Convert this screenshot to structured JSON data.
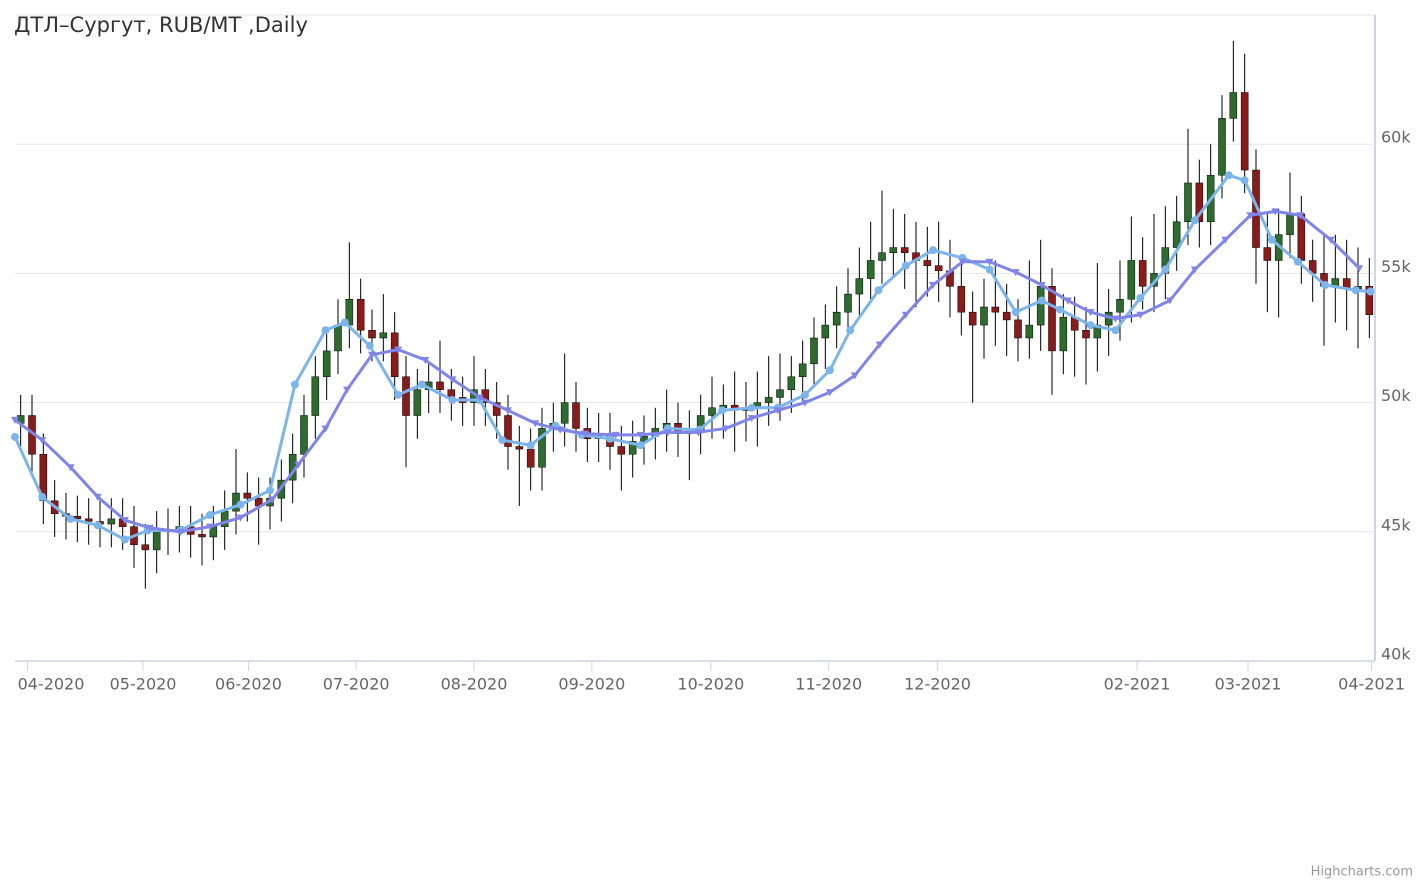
{
  "chart_data": {
    "type": "candlestick",
    "title": "ДТЛ–Сургут, RUB/MT ,Daily",
    "credits": "Highcharts.com",
    "up_color": "#2e6b2e",
    "down_color": "#8b1a1a",
    "wick_color": "#000000",
    "grid": true,
    "xlim": [
      -0.5,
      119.5
    ],
    "xticks": [
      {
        "value": 0.6,
        "label": "04-2020"
      },
      {
        "value": 10.8,
        "label": "05-2020"
      },
      {
        "value": 20.1,
        "label": "06-2020"
      },
      {
        "value": 29.6,
        "label": "07-2020"
      },
      {
        "value": 40,
        "label": "08-2020"
      },
      {
        "value": 50.4,
        "label": "09-2020"
      },
      {
        "value": 60.9,
        "label": "10-2020"
      },
      {
        "value": 71.3,
        "label": "11-2020"
      },
      {
        "value": 80.9,
        "label": "12-2020"
      },
      {
        "value": 98.5,
        "label": "02-2021"
      },
      {
        "value": 108.3,
        "label": "03-2021"
      },
      {
        "value": 119.2,
        "label": "04-2021"
      }
    ],
    "ylim": [
      40000,
      65000
    ],
    "yticks": [
      {
        "value": 40000,
        "label": "40k"
      },
      {
        "value": 45000,
        "label": "45k"
      },
      {
        "value": 50000,
        "label": "50k"
      },
      {
        "value": 55000,
        "label": "55k"
      },
      {
        "value": 60000,
        "label": "60k"
      }
    ],
    "open": [
      49200,
      49500,
      48000,
      46200,
      45700,
      45600,
      45500,
      45400,
      45300,
      45500,
      45200,
      44500,
      44300,
      45000,
      45100,
      45200,
      44900,
      44800,
      45200,
      45800,
      46500,
      46300,
      46000,
      46300,
      47000,
      48000,
      49500,
      51000,
      52000,
      53000,
      54000,
      52800,
      52500,
      52700,
      51000,
      49500,
      50500,
      50800,
      50500,
      50200,
      50000,
      50500,
      50000,
      49500,
      48300,
      48200,
      47500,
      49000,
      49200,
      50000,
      49000,
      48600,
      48800,
      48300,
      48000,
      48500,
      48700,
      49000,
      49200,
      48800,
      48900,
      49500,
      49800,
      49900,
      49700,
      49800,
      50000,
      50200,
      50500,
      51000,
      51500,
      52500,
      53000,
      53500,
      54200,
      54800,
      55500,
      55800,
      56000,
      55800,
      55500,
      55300,
      55100,
      54500,
      53500,
      53000,
      53700,
      53500,
      53200,
      52500,
      53000,
      54500,
      52000,
      53300,
      52800,
      52500,
      53000,
      53500,
      54000,
      55500,
      54500,
      55000,
      56000,
      57000,
      58500,
      57000,
      58800,
      61000,
      62000,
      59000,
      56000,
      55500,
      56500,
      57300,
      55500,
      55000,
      54500,
      54800,
      54400,
      54500
    ],
    "high": [
      50300,
      50300,
      48800,
      47000,
      46500,
      46400,
      46300,
      46200,
      46300,
      46300,
      46000,
      45300,
      45800,
      45900,
      46000,
      46000,
      45700,
      46000,
      46600,
      48200,
      47300,
      47100,
      47100,
      47800,
      48800,
      50300,
      51800,
      52800,
      54000,
      56200,
      54800,
      53600,
      54200,
      53500,
      51800,
      51300,
      51600,
      52400,
      51300,
      51000,
      51800,
      51300,
      50800,
      50300,
      49100,
      49000,
      49800,
      50000,
      51900,
      50800,
      49800,
      49600,
      49600,
      49100,
      49300,
      49500,
      49800,
      50500,
      50000,
      49700,
      50300,
      51000,
      50700,
      51200,
      50800,
      51200,
      51800,
      51900,
      51800,
      52400,
      53300,
      53800,
      54500,
      55200,
      56000,
      57000,
      58200,
      57500,
      57300,
      57000,
      56800,
      57000,
      56300,
      55500,
      54300,
      54800,
      55500,
      54600,
      54000,
      55500,
      56300,
      55200,
      54200,
      54100,
      53700,
      55400,
      54400,
      55500,
      57200,
      56400,
      57300,
      57600,
      58000,
      60600,
      59400,
      60000,
      61900,
      64000,
      63500,
      59800,
      57300,
      57500,
      58900,
      58000,
      56300,
      56500,
      56500,
      56300,
      56000,
      55600
    ],
    "low": [
      48300,
      47100,
      45300,
      44800,
      44700,
      44600,
      44500,
      44400,
      44400,
      44300,
      43600,
      42800,
      43400,
      44100,
      44200,
      44000,
      43700,
      43900,
      44300,
      44900,
      45400,
      44500,
      45100,
      45400,
      46100,
      47100,
      48600,
      50100,
      51100,
      52100,
      51900,
      51600,
      51600,
      50100,
      47500,
      48600,
      49600,
      49600,
      49300,
      49100,
      49100,
      49100,
      48600,
      47400,
      46000,
      46600,
      46600,
      48100,
      48300,
      48100,
      47700,
      47700,
      47400,
      46600,
      47100,
      47600,
      47800,
      48100,
      47900,
      47000,
      48000,
      48600,
      48600,
      48100,
      48500,
      48300,
      49100,
      49300,
      49600,
      50100,
      50600,
      51300,
      52100,
      52600,
      53300,
      53900,
      54600,
      54900,
      54400,
      53700,
      54100,
      53900,
      53300,
      52600,
      50000,
      51700,
      52200,
      51800,
      51600,
      51700,
      52000,
      50300,
      51100,
      51000,
      50700,
      51200,
      51800,
      52400,
      53100,
      53600,
      53500,
      54000,
      55100,
      56100,
      56000,
      56100,
      57900,
      60100,
      58100,
      54600,
      53500,
      53300,
      55600,
      54600,
      53900,
      52200,
      53100,
      52800,
      52100,
      52500
    ],
    "close": [
      49500,
      48000,
      46200,
      45700,
      45600,
      45500,
      45400,
      45300,
      45500,
      45200,
      44500,
      44300,
      45000,
      45100,
      45200,
      44900,
      44800,
      45200,
      45800,
      46500,
      46300,
      46000,
      46300,
      47000,
      48000,
      49500,
      51000,
      52000,
      53000,
      54000,
      52800,
      52500,
      52700,
      51000,
      49500,
      50500,
      50800,
      50500,
      50200,
      50000,
      50500,
      50000,
      49500,
      48300,
      48200,
      47500,
      49000,
      49200,
      50000,
      49000,
      48600,
      48800,
      48300,
      48000,
      48500,
      48700,
      49000,
      49200,
      48800,
      48900,
      49500,
      49800,
      49900,
      49700,
      49800,
      50000,
      50200,
      50500,
      51000,
      51500,
      52500,
      53000,
      53500,
      54200,
      54800,
      55500,
      55800,
      56000,
      55800,
      55500,
      55300,
      55100,
      54500,
      53500,
      53000,
      53700,
      53500,
      53200,
      52500,
      53000,
      54500,
      52000,
      53300,
      52800,
      52500,
      53000,
      53500,
      54000,
      55500,
      54500,
      55000,
      56000,
      57000,
      58500,
      57000,
      58800,
      61000,
      62000,
      59000,
      56000,
      55500,
      56500,
      57300,
      55500,
      55000,
      54500,
      54800,
      54400,
      54500,
      53400
    ],
    "lines": [
      {
        "color": "#7cb5ec",
        "marker": "circle",
        "x": [
          -0.5,
          1.9,
          4.4,
          6.8,
          9.2,
          11.2,
          14.1,
          16.7,
          19.4,
          22,
          24.2,
          26.9,
          28.6,
          30.8,
          33.3,
          35.4,
          38.1,
          40.5,
          42.5,
          45,
          47.2,
          49.5,
          52,
          54.7,
          57.1,
          59.9,
          61.9,
          64.5,
          66.8,
          69.2,
          71.4,
          73.2,
          75.7,
          78.1,
          80.5,
          83.1,
          85.5,
          87.8,
          90.1,
          91.7,
          94.4,
          96.6,
          98.8,
          101,
          103.6,
          106.6,
          108,
          110.4,
          112.7,
          115.1,
          117.8,
          119.1
        ],
        "values": [
          48670,
          46350,
          45500,
          45250,
          44700,
          45050,
          45050,
          45650,
          46050,
          46600,
          50700,
          52800,
          53100,
          52200,
          50300,
          50700,
          50100,
          50100,
          48550,
          48350,
          49100,
          48750,
          48600,
          48350,
          49000,
          48950,
          49700,
          49800,
          49800,
          50300,
          51250,
          52800,
          54350,
          55300,
          55900,
          55600,
          55150,
          53500,
          53950,
          53600,
          53000,
          52800,
          54050,
          55150,
          57050,
          58800,
          58600,
          56300,
          55450,
          54550,
          54350,
          54300
        ]
      },
      {
        "color": "#8085e9",
        "marker": "triangle-down",
        "x": [
          -0.5,
          1.9,
          4.4,
          6.8,
          9.2,
          11.4,
          14.1,
          16.7,
          19.4,
          22.2,
          24.5,
          26.9,
          28.8,
          31,
          33.3,
          35.7,
          38.1,
          40.5,
          43,
          45.4,
          47.6,
          49.8,
          52.5,
          54.7,
          57.1,
          59.8,
          62.2,
          64.5,
          66.8,
          69.2,
          71.4,
          73.6,
          75.8,
          78.1,
          80.5,
          83.1,
          85.5,
          87.8,
          90.1,
          92.4,
          94.4,
          96.6,
          98.8,
          101.4,
          103.6,
          106.3,
          108.5,
          110.7,
          112.9,
          115.6,
          118.1
        ],
        "values": [
          49330,
          48550,
          47500,
          46350,
          45450,
          45150,
          45000,
          45200,
          45550,
          46250,
          47600,
          49000,
          50500,
          51850,
          52050,
          51650,
          50900,
          50200,
          49700,
          49200,
          48950,
          48800,
          48750,
          48750,
          48850,
          48850,
          49000,
          49400,
          49700,
          50000,
          50400,
          51050,
          52250,
          53400,
          54550,
          55450,
          55450,
          55050,
          54550,
          53950,
          53500,
          53250,
          53400,
          53950,
          55150,
          56300,
          57250,
          57400,
          57250,
          56300,
          55200
        ]
      }
    ]
  }
}
